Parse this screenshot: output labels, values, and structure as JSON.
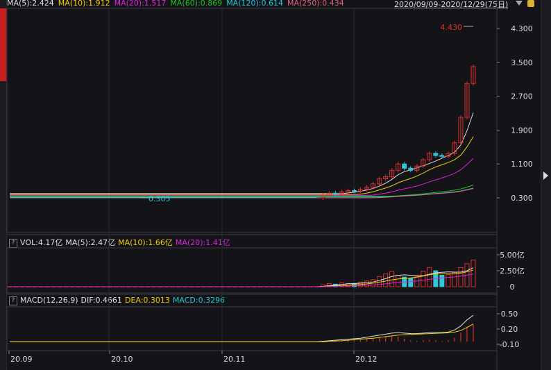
{
  "ma_bar": [
    {
      "label": "MA(5):2.424",
      "color": "#e0e0e0"
    },
    {
      "label": "MA(10):1.912",
      "color": "#f0d000"
    },
    {
      "label": "MA(20):1.517",
      "color": "#e020e0"
    },
    {
      "label": "MA(60):0.869",
      "color": "#20c020"
    },
    {
      "label": "MA(120):0.614",
      "color": "#20c8d8"
    },
    {
      "label": "MA(250):0.434",
      "color": "#e06080"
    }
  ],
  "date_range": "2020/09/09-2020/12/29(75日)",
  "vol_header": {
    "help": "?",
    "items": [
      {
        "label": "VOL:4.17亿",
        "color": "#e0e0e0"
      },
      {
        "label": "MA(5):2.47亿",
        "color": "#e0e0e0"
      },
      {
        "label": "MA(10):1.66亿",
        "color": "#f0d000"
      },
      {
        "label": "MA(20):1.41亿",
        "color": "#e020e0"
      }
    ]
  },
  "macd_header": {
    "help": "?",
    "items": [
      {
        "label": "MACD(12,26,9)",
        "color": "#e0e0e0"
      },
      {
        "label": "DIF:0.4661",
        "color": "#e0e0e0"
      },
      {
        "label": "DEA:0.3013",
        "color": "#f0d000"
      },
      {
        "label": "MACD:0.3296",
        "color": "#20c8d8"
      }
    ]
  },
  "chart_data": {
    "type": "candlestick",
    "price_axis": {
      "ticks": [
        "4.300",
        "3.500",
        "2.700",
        "1.900",
        "1.100",
        "0.300"
      ]
    },
    "volume_axis": {
      "ticks": [
        "5.00亿",
        "2.50亿",
        "0"
      ]
    },
    "macd_axis": {
      "ticks": [
        "0.50",
        "0.20",
        "-0.10"
      ]
    },
    "x_ticks": [
      "20.09",
      "20.10",
      "20.11",
      "20.12"
    ],
    "max_label": "4.430",
    "min_label": "0.305",
    "closes": [
      0.3,
      0.3,
      0.3,
      0.3,
      0.3,
      0.3,
      0.3,
      0.3,
      0.3,
      0.3,
      0.3,
      0.3,
      0.3,
      0.3,
      0.3,
      0.3,
      0.3,
      0.3,
      0.3,
      0.3,
      0.3,
      0.3,
      0.3,
      0.3,
      0.3,
      0.3,
      0.3,
      0.3,
      0.3,
      0.3,
      0.3,
      0.3,
      0.3,
      0.3,
      0.3,
      0.3,
      0.3,
      0.3,
      0.3,
      0.3,
      0.3,
      0.3,
      0.3,
      0.3,
      0.3,
      0.3,
      0.3,
      0.3,
      0.3,
      0.3,
      0.36,
      0.41,
      0.39,
      0.44,
      0.47,
      0.46,
      0.5,
      0.55,
      0.63,
      0.75,
      0.8,
      0.95,
      1.1,
      1.0,
      0.95,
      1.05,
      1.2,
      1.35,
      1.3,
      1.28,
      1.35,
      1.6,
      2.2,
      3.0,
      3.4
    ],
    "volumes": [
      0,
      0,
      0,
      0,
      0,
      0,
      0,
      0,
      0,
      0,
      0,
      0,
      0,
      0,
      0,
      0,
      0,
      0,
      0,
      0,
      0,
      0,
      0,
      0,
      0,
      0,
      0,
      0,
      0,
      0,
      0,
      0,
      0,
      0,
      0,
      0,
      0,
      0,
      0,
      0,
      0,
      0,
      0,
      0,
      0,
      0,
      0,
      0,
      0,
      0,
      0.3,
      0.5,
      0.4,
      0.6,
      0.5,
      0.5,
      0.7,
      0.9,
      1.1,
      1.6,
      2.0,
      2.4,
      1.8,
      1.5,
      1.3,
      1.6,
      2.4,
      3.0,
      2.5,
      1.8,
      1.9,
      2.2,
      3.0,
      3.6,
      4.17
    ],
    "dif": [
      -0.05,
      -0.05,
      -0.05,
      -0.05,
      -0.05,
      -0.05,
      -0.05,
      -0.05,
      -0.05,
      -0.05,
      -0.05,
      -0.05,
      -0.05,
      -0.05,
      -0.05,
      -0.05,
      -0.05,
      -0.05,
      -0.05,
      -0.05,
      -0.05,
      -0.05,
      -0.05,
      -0.05,
      -0.05,
      -0.05,
      -0.05,
      -0.05,
      -0.05,
      -0.05,
      -0.05,
      -0.05,
      -0.05,
      -0.05,
      -0.05,
      -0.05,
      -0.05,
      -0.05,
      -0.05,
      -0.05,
      -0.05,
      -0.05,
      -0.05,
      -0.05,
      -0.05,
      -0.05,
      -0.05,
      -0.05,
      -0.05,
      -0.05,
      -0.04,
      -0.03,
      -0.02,
      -0.01,
      0.0,
      0.01,
      0.02,
      0.04,
      0.06,
      0.08,
      0.1,
      0.12,
      0.13,
      0.12,
      0.11,
      0.11,
      0.12,
      0.13,
      0.13,
      0.13,
      0.14,
      0.18,
      0.26,
      0.38,
      0.47
    ],
    "dea": [
      -0.05,
      -0.05,
      -0.05,
      -0.05,
      -0.05,
      -0.05,
      -0.05,
      -0.05,
      -0.05,
      -0.05,
      -0.05,
      -0.05,
      -0.05,
      -0.05,
      -0.05,
      -0.05,
      -0.05,
      -0.05,
      -0.05,
      -0.05,
      -0.05,
      -0.05,
      -0.05,
      -0.05,
      -0.05,
      -0.05,
      -0.05,
      -0.05,
      -0.05,
      -0.05,
      -0.05,
      -0.05,
      -0.05,
      -0.05,
      -0.05,
      -0.05,
      -0.05,
      -0.05,
      -0.05,
      -0.05,
      -0.05,
      -0.05,
      -0.05,
      -0.05,
      -0.05,
      -0.05,
      -0.05,
      -0.05,
      -0.05,
      -0.05,
      -0.05,
      -0.04,
      -0.035,
      -0.03,
      -0.02,
      -0.01,
      0.0,
      0.01,
      0.02,
      0.035,
      0.05,
      0.065,
      0.08,
      0.09,
      0.095,
      0.1,
      0.105,
      0.11,
      0.115,
      0.12,
      0.125,
      0.14,
      0.17,
      0.23,
      0.3
    ]
  }
}
